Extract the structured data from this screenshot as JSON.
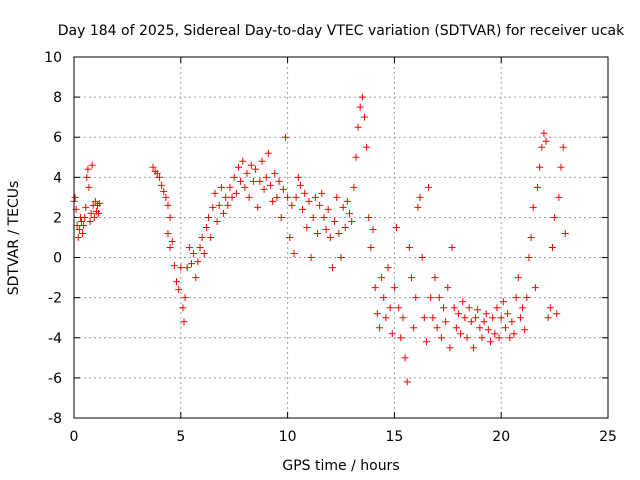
{
  "chart_data": {
    "type": "scatter",
    "title": "Day 184 of 2025, Sidereal Day-to-day VTEC variation (SDTVAR) for receiver ucak",
    "xlabel": "GPS time / hours",
    "ylabel": "SDTVAR / TECUs",
    "xlim": [
      0,
      25
    ],
    "ylim": [
      -8,
      10
    ],
    "xticks": [
      0,
      5,
      10,
      15,
      20,
      25
    ],
    "yticks": [
      -8,
      -6,
      -4,
      -2,
      0,
      2,
      4,
      6,
      8,
      10
    ],
    "marker": "+",
    "color": "#ff0000",
    "grid": true,
    "series": [
      {
        "name": "SDTVAR",
        "points": [
          [
            0.0,
            2.8
          ],
          [
            0.05,
            3.0
          ],
          [
            0.1,
            2.4
          ],
          [
            0.15,
            1.6
          ],
          [
            0.2,
            1.0
          ],
          [
            0.25,
            1.4
          ],
          [
            0.3,
            2.0
          ],
          [
            0.35,
            1.8
          ],
          [
            0.4,
            1.2
          ],
          [
            0.45,
            1.6
          ],
          [
            0.5,
            2.0
          ],
          [
            0.55,
            2.5
          ],
          [
            0.6,
            4.0
          ],
          [
            0.65,
            4.4
          ],
          [
            0.7,
            3.5
          ],
          [
            0.75,
            1.8
          ],
          [
            0.8,
            2.2
          ],
          [
            0.85,
            4.6
          ],
          [
            0.9,
            2.6
          ],
          [
            0.95,
            2.0
          ],
          [
            1.0,
            2.8
          ],
          [
            1.05,
            2.3
          ],
          [
            1.1,
            2.6
          ],
          [
            1.15,
            2.2
          ],
          [
            1.2,
            2.7
          ],
          [
            3.7,
            4.5
          ],
          [
            3.8,
            4.3
          ],
          [
            3.9,
            4.2
          ],
          [
            4.0,
            4.0
          ],
          [
            4.1,
            3.6
          ],
          [
            4.2,
            3.3
          ],
          [
            4.3,
            3.0
          ],
          [
            4.4,
            2.6
          ],
          [
            4.5,
            2.0
          ],
          [
            4.4,
            1.2
          ],
          [
            4.5,
            0.5
          ],
          [
            4.6,
            0.8
          ],
          [
            4.7,
            -0.4
          ],
          [
            4.8,
            -1.2
          ],
          [
            4.9,
            -1.6
          ],
          [
            5.0,
            -0.5
          ],
          [
            5.1,
            -2.5
          ],
          [
            5.15,
            -3.2
          ],
          [
            5.2,
            -2.0
          ],
          [
            5.3,
            -0.5
          ],
          [
            5.4,
            0.5
          ],
          [
            5.5,
            -0.3
          ],
          [
            5.6,
            0.2
          ],
          [
            5.7,
            -1.0
          ],
          [
            5.8,
            -0.2
          ],
          [
            5.9,
            0.5
          ],
          [
            6.0,
            1.0
          ],
          [
            6.1,
            0.2
          ],
          [
            6.2,
            1.5
          ],
          [
            6.3,
            2.0
          ],
          [
            6.4,
            1.0
          ],
          [
            6.5,
            2.5
          ],
          [
            6.6,
            3.2
          ],
          [
            6.7,
            1.8
          ],
          [
            6.8,
            2.6
          ],
          [
            6.9,
            3.5
          ],
          [
            7.0,
            2.2
          ],
          [
            7.1,
            3.0
          ],
          [
            7.2,
            2.6
          ],
          [
            7.3,
            3.5
          ],
          [
            7.4,
            3.0
          ],
          [
            7.5,
            4.0
          ],
          [
            7.6,
            3.2
          ],
          [
            7.7,
            4.5
          ],
          [
            7.8,
            3.8
          ],
          [
            7.9,
            4.8
          ],
          [
            8.0,
            3.5
          ],
          [
            8.1,
            4.2
          ],
          [
            8.2,
            3.0
          ],
          [
            8.3,
            4.6
          ],
          [
            8.4,
            3.8
          ],
          [
            8.5,
            4.4
          ],
          [
            8.6,
            2.5
          ],
          [
            8.7,
            3.8
          ],
          [
            8.8,
            4.8
          ],
          [
            8.9,
            3.4
          ],
          [
            9.0,
            4.0
          ],
          [
            9.1,
            5.2
          ],
          [
            9.2,
            3.6
          ],
          [
            9.3,
            2.8
          ],
          [
            9.4,
            4.2
          ],
          [
            9.5,
            3.0
          ],
          [
            9.6,
            3.8
          ],
          [
            9.7,
            2.0
          ],
          [
            9.8,
            3.4
          ],
          [
            9.9,
            6.0
          ],
          [
            10.0,
            3.0
          ],
          [
            10.1,
            1.0
          ],
          [
            10.2,
            2.6
          ],
          [
            10.3,
            0.2
          ],
          [
            10.4,
            3.0
          ],
          [
            10.5,
            4.0
          ],
          [
            10.6,
            3.6
          ],
          [
            10.7,
            2.4
          ],
          [
            10.8,
            3.2
          ],
          [
            10.9,
            1.5
          ],
          [
            11.0,
            2.8
          ],
          [
            11.1,
            0.0
          ],
          [
            11.2,
            2.0
          ],
          [
            11.3,
            3.0
          ],
          [
            11.4,
            1.2
          ],
          [
            11.5,
            2.6
          ],
          [
            11.6,
            3.2
          ],
          [
            11.7,
            2.0
          ],
          [
            11.8,
            1.4
          ],
          [
            11.9,
            2.4
          ],
          [
            12.0,
            1.0
          ],
          [
            12.1,
            -0.5
          ],
          [
            12.2,
            1.8
          ],
          [
            12.3,
            3.0
          ],
          [
            12.4,
            1.2
          ],
          [
            12.5,
            0.0
          ],
          [
            12.6,
            2.5
          ],
          [
            12.7,
            1.5
          ],
          [
            12.8,
            2.8
          ],
          [
            12.9,
            2.2
          ],
          [
            13.0,
            1.8
          ],
          [
            13.1,
            3.5
          ],
          [
            13.2,
            5.0
          ],
          [
            13.3,
            6.5
          ],
          [
            13.4,
            7.5
          ],
          [
            13.5,
            8.0
          ],
          [
            13.6,
            7.0
          ],
          [
            13.7,
            5.5
          ],
          [
            13.8,
            2.0
          ],
          [
            13.9,
            0.5
          ],
          [
            14.0,
            1.4
          ],
          [
            14.1,
            -1.5
          ],
          [
            14.2,
            -2.8
          ],
          [
            14.3,
            -3.5
          ],
          [
            14.4,
            -1.0
          ],
          [
            14.5,
            -2.0
          ],
          [
            14.6,
            -3.0
          ],
          [
            14.7,
            -0.5
          ],
          [
            14.8,
            -2.5
          ],
          [
            14.9,
            -3.8
          ],
          [
            15.0,
            -1.5
          ],
          [
            15.1,
            1.5
          ],
          [
            15.2,
            -2.5
          ],
          [
            15.3,
            -4.0
          ],
          [
            15.4,
            -3.0
          ],
          [
            15.5,
            -5.0
          ],
          [
            15.6,
            -6.2
          ],
          [
            15.7,
            0.5
          ],
          [
            15.8,
            -1.0
          ],
          [
            15.9,
            -3.5
          ],
          [
            16.0,
            -2.0
          ],
          [
            16.1,
            2.5
          ],
          [
            16.2,
            3.0
          ],
          [
            16.3,
            0.0
          ],
          [
            16.4,
            -3.0
          ],
          [
            16.5,
            -4.2
          ],
          [
            16.6,
            3.5
          ],
          [
            16.7,
            -2.0
          ],
          [
            16.8,
            -3.0
          ],
          [
            16.9,
            -1.0
          ],
          [
            17.0,
            -3.5
          ],
          [
            17.1,
            -2.0
          ],
          [
            17.2,
            -4.0
          ],
          [
            17.3,
            -2.5
          ],
          [
            17.4,
            -3.2
          ],
          [
            17.5,
            -1.5
          ],
          [
            17.6,
            -4.5
          ],
          [
            17.7,
            0.5
          ],
          [
            17.8,
            -2.5
          ],
          [
            17.9,
            -3.5
          ],
          [
            18.0,
            -2.8
          ],
          [
            18.1,
            -3.8
          ],
          [
            18.2,
            -2.2
          ],
          [
            18.3,
            -3.0
          ],
          [
            18.4,
            -4.0
          ],
          [
            18.5,
            -2.5
          ],
          [
            18.6,
            -3.2
          ],
          [
            18.7,
            -4.5
          ],
          [
            18.8,
            -3.0
          ],
          [
            18.9,
            -2.6
          ],
          [
            19.0,
            -3.5
          ],
          [
            19.1,
            -4.0
          ],
          [
            19.2,
            -3.2
          ],
          [
            19.3,
            -2.8
          ],
          [
            19.4,
            -3.6
          ],
          [
            19.5,
            -4.2
          ],
          [
            19.6,
            -3.0
          ],
          [
            19.7,
            -3.8
          ],
          [
            19.8,
            -2.5
          ],
          [
            19.9,
            -4.0
          ],
          [
            20.0,
            -3.0
          ],
          [
            20.1,
            -2.2
          ],
          [
            20.2,
            -3.5
          ],
          [
            20.3,
            -2.8
          ],
          [
            20.4,
            -4.0
          ],
          [
            20.5,
            -3.2
          ],
          [
            20.6,
            -3.8
          ],
          [
            20.7,
            -2.0
          ],
          [
            20.8,
            -1.0
          ],
          [
            20.9,
            -3.0
          ],
          [
            21.0,
            -2.5
          ],
          [
            21.1,
            -3.6
          ],
          [
            21.2,
            -2.0
          ],
          [
            21.3,
            0.0
          ],
          [
            21.4,
            1.0
          ],
          [
            21.5,
            2.5
          ],
          [
            21.6,
            -1.5
          ],
          [
            21.7,
            3.5
          ],
          [
            21.8,
            4.5
          ],
          [
            21.9,
            5.5
          ],
          [
            22.0,
            6.2
          ],
          [
            22.1,
            5.8
          ],
          [
            22.2,
            -3.0
          ],
          [
            22.3,
            -2.5
          ],
          [
            22.4,
            0.5
          ],
          [
            22.5,
            2.0
          ],
          [
            22.6,
            -2.8
          ],
          [
            22.7,
            3.0
          ],
          [
            22.8,
            4.5
          ],
          [
            22.9,
            5.5
          ],
          [
            23.0,
            1.2
          ]
        ]
      }
    ]
  }
}
